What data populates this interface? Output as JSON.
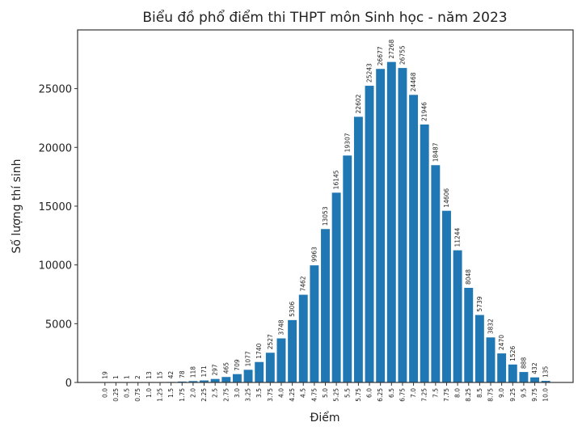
{
  "chart_data": {
    "type": "bar",
    "title": "Biểu đồ phổ điểm thi THPT môn Sinh học - năm 2023",
    "xlabel": "Điểm",
    "ylabel": "Số lượng thí sinh",
    "categories": [
      "0.0",
      "0.25",
      "0.5",
      "0.75",
      "1.0",
      "1.25",
      "1.5",
      "1.75",
      "2.0",
      "2.25",
      "2.5",
      "2.75",
      "3.0",
      "3.25",
      "3.5",
      "3.75",
      "4.0",
      "4.25",
      "4.5",
      "4.75",
      "5.0",
      "5.25",
      "5.5",
      "5.75",
      "6.0",
      "6.25",
      "6.5",
      "6.75",
      "7.0",
      "7.25",
      "7.5",
      "7.75",
      "8.0",
      "8.25",
      "8.5",
      "8.75",
      "9.0",
      "9.25",
      "9.5",
      "9.75",
      "10.0"
    ],
    "values": [
      19,
      1,
      1,
      2,
      13,
      15,
      42,
      78,
      118,
      171,
      297,
      465,
      709,
      1077,
      1740,
      2527,
      3748,
      5306,
      7462,
      9963,
      13053,
      16145,
      19307,
      22602,
      25243,
      26677,
      27268,
      26755,
      24468,
      21946,
      18487,
      14606,
      11244,
      8048,
      5739,
      3832,
      2470,
      1526,
      888,
      432,
      135
    ],
    "ylim": [
      0,
      29995
    ],
    "yticks": [
      0,
      5000,
      10000,
      15000,
      20000,
      25000
    ],
    "grid": false,
    "bar_color": "#1f77b4",
    "data_labels": true
  }
}
